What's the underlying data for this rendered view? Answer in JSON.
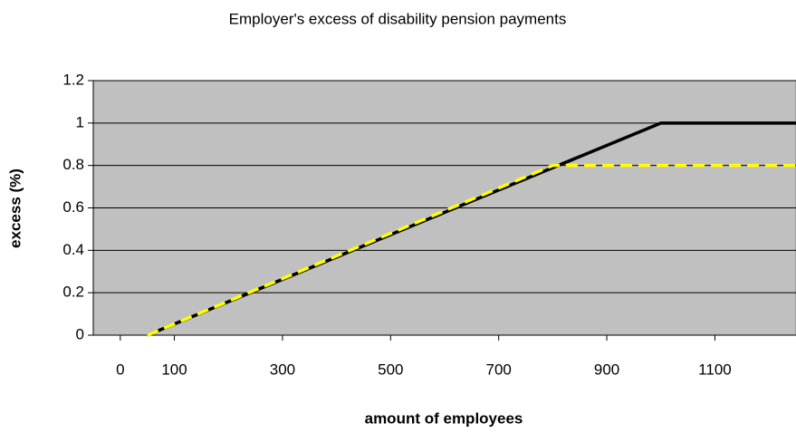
{
  "chart_data": {
    "type": "line",
    "title": "Employer's excess of disability pension payments",
    "x_label": "amount of employees",
    "y_label": "excess (%)",
    "xlim": [
      -50,
      1250
    ],
    "xticks": [
      0,
      100,
      300,
      500,
      700,
      900,
      1100
    ],
    "ylim": [
      0,
      1.2
    ],
    "yticks": [
      0,
      0.2,
      0.4,
      0.6,
      0.8,
      1,
      1.2
    ],
    "grid": true,
    "background": "#c0c0c0",
    "series": [
      {
        "color": "#000000",
        "dashed": false,
        "x": [
          50,
          1000,
          1250
        ],
        "values": [
          0,
          1,
          1
        ]
      },
      {
        "color": "#ffff00",
        "dashed": true,
        "x": [
          50,
          800,
          1250
        ],
        "values": [
          0,
          0.8,
          0.8
        ]
      }
    ]
  }
}
